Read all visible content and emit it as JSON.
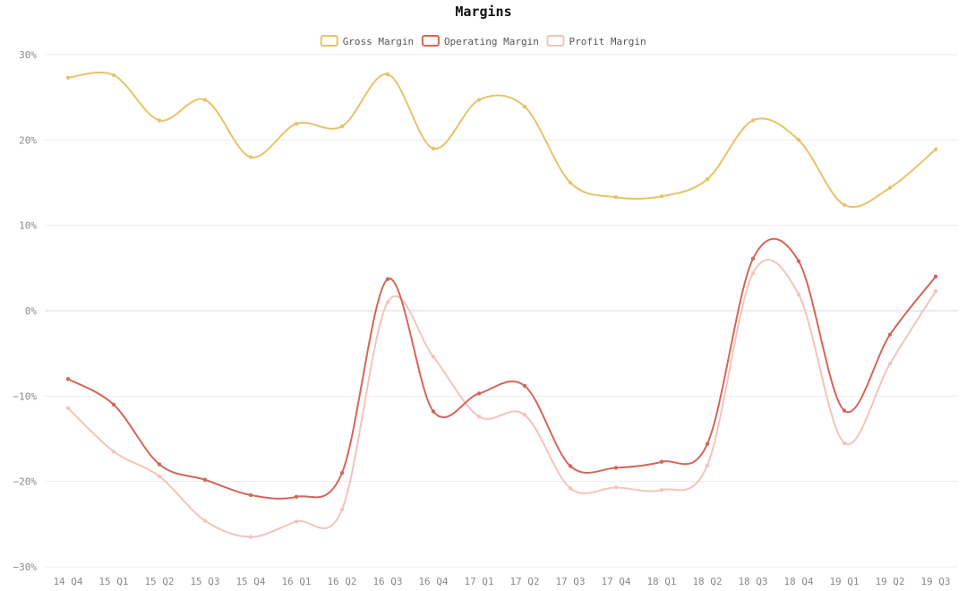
{
  "chart_data": {
    "type": "line",
    "title": "Margins",
    "xlabel": "",
    "ylabel": "",
    "ylim": [
      -30,
      30
    ],
    "yticks": [
      -30,
      -20,
      -10,
      0,
      10,
      20,
      30
    ],
    "ytick_labels": [
      "−30%",
      "−20%",
      "−10%",
      "0%",
      "10%",
      "20%",
      "30%"
    ],
    "grid": true,
    "legend_position": "top-center",
    "categories": [
      "14 Q4",
      "15 Q1",
      "15 Q2",
      "15 Q3",
      "15 Q4",
      "16 Q1",
      "16 Q2",
      "16 Q3",
      "16 Q4",
      "17 Q1",
      "17 Q2",
      "17 Q3",
      "17 Q4",
      "18 Q1",
      "18 Q2",
      "18 Q3",
      "18 Q4",
      "19 Q1",
      "19 Q2",
      "19 Q3"
    ],
    "series": [
      {
        "name": "Gross Margin",
        "color": "#e6c36a",
        "values": [
          27.3,
          27.6,
          22.3,
          24.7,
          18.0,
          21.9,
          21.6,
          27.7,
          19.0,
          24.7,
          23.9,
          15.0,
          13.3,
          13.4,
          15.4,
          22.3,
          20.0,
          12.4,
          14.4,
          18.9
        ]
      },
      {
        "name": "Operating Margin",
        "color": "#d2675a",
        "values": [
          -8.0,
          -11.0,
          -18.0,
          -19.8,
          -21.6,
          -21.8,
          -19.0,
          3.7,
          -11.8,
          -9.7,
          -8.8,
          -18.2,
          -18.4,
          -17.7,
          -15.6,
          6.1,
          5.8,
          -11.7,
          -2.8,
          4.0
        ]
      },
      {
        "name": "Profit Margin",
        "color": "#f2c4bc",
        "values": [
          -11.4,
          -16.5,
          -19.4,
          -24.6,
          -26.5,
          -24.7,
          -23.3,
          1.0,
          -5.4,
          -12.4,
          -12.2,
          -20.8,
          -20.7,
          -21.0,
          -18.1,
          4.4,
          1.9,
          -15.5,
          -6.2,
          2.3
        ]
      }
    ]
  }
}
